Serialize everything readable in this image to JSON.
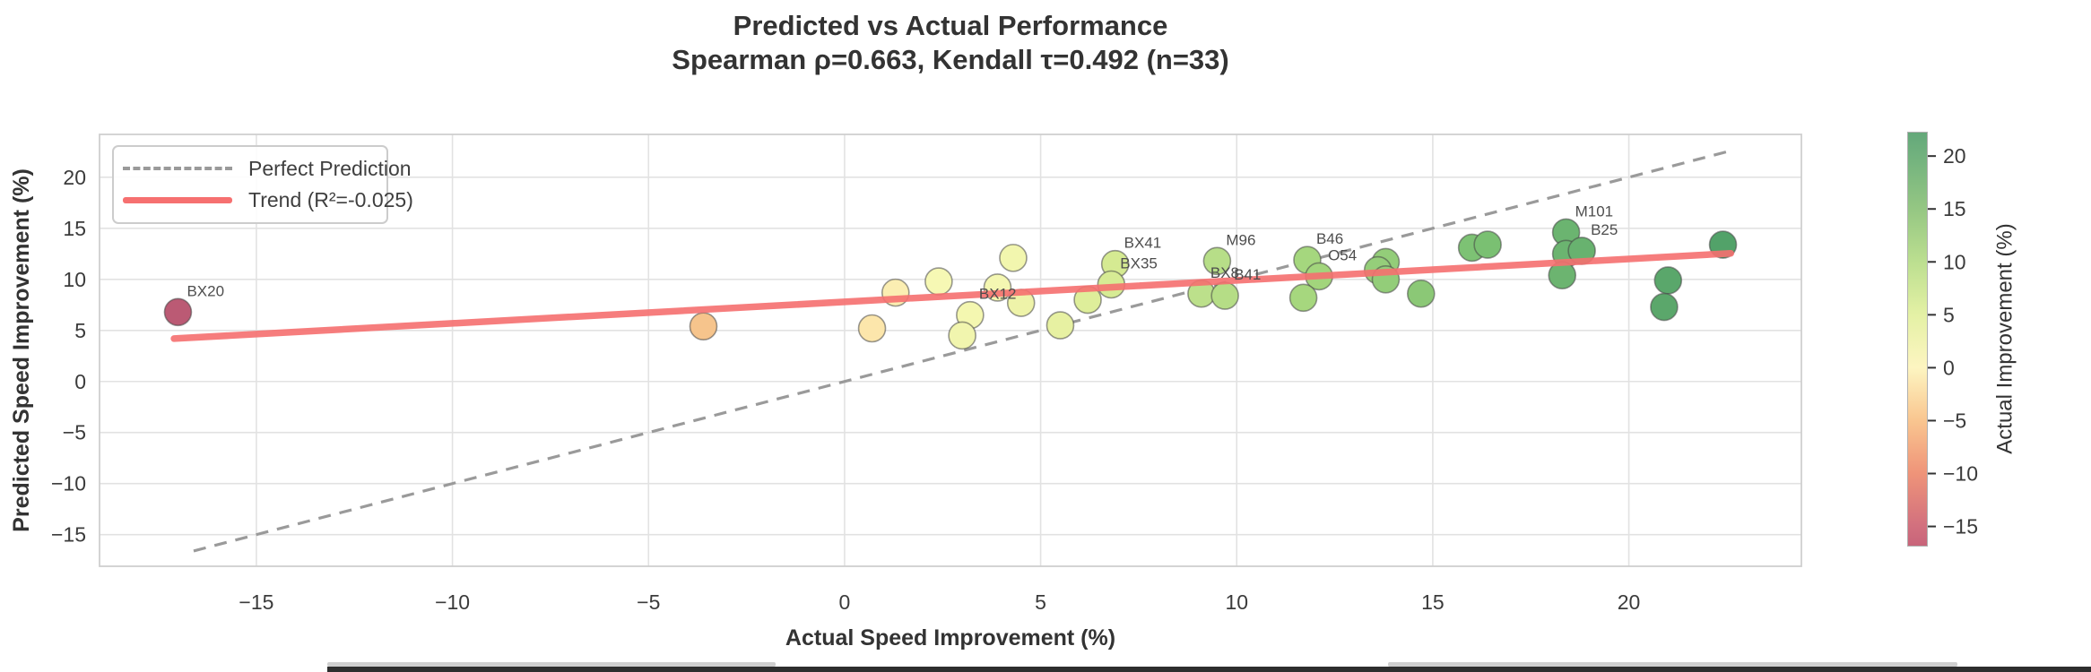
{
  "chart_data": {
    "type": "scatter",
    "title": "Predicted vs Actual Performance",
    "subtitle": "Spearman ρ=0.663, Kendall τ=0.492 (n=33)",
    "xlabel": "Actual Speed Improvement (%)",
    "ylabel": "Predicted Speed Improvement (%)",
    "xlim": [
      -19.0,
      24.4
    ],
    "ylim": [
      -18.1,
      24.2
    ],
    "xticks": [
      -15,
      -10,
      -5,
      0,
      5,
      10,
      15,
      20
    ],
    "yticks": [
      20,
      15,
      10,
      5,
      0,
      -5,
      -10,
      -15
    ],
    "grid": true,
    "grid_color": "#e2e2e2",
    "perfect_line": {
      "label": "Perfect Prediction",
      "color": "#9a9a9a",
      "points": [
        [
          -16.6,
          -16.6
        ],
        [
          22.6,
          22.6
        ]
      ]
    },
    "trend_line": {
      "label": "Trend (R²=-0.025)",
      "color": "#f67070",
      "points": [
        [
          -17.1,
          4.2
        ],
        [
          22.6,
          12.55
        ]
      ]
    },
    "colorbar": {
      "label": "Actual Improvement (%)",
      "vmin": -16.9,
      "vmax": 22.3,
      "ticks": [
        20,
        15,
        10,
        5,
        0,
        -5,
        -10,
        -15
      ],
      "stops": [
        {
          "v": 22.3,
          "c": "#64a87a"
        },
        {
          "v": 20,
          "c": "#72b27e"
        },
        {
          "v": 15,
          "c": "#95c783"
        },
        {
          "v": 10,
          "c": "#bcdf90"
        },
        {
          "v": 5,
          "c": "#e4f1a5"
        },
        {
          "v": 0,
          "c": "#fdf5c1"
        },
        {
          "v": -5,
          "c": "#f9c690"
        },
        {
          "v": -10,
          "c": "#ef9479"
        },
        {
          "v": -15,
          "c": "#d2707e"
        },
        {
          "v": -16.9,
          "c": "#c8647a"
        }
      ]
    },
    "points": [
      {
        "x": -17.0,
        "y": 6.8,
        "label": "BX20",
        "color": "#bb5a74"
      },
      {
        "x": -3.6,
        "y": 5.4,
        "label": "",
        "color": "#f6c48c"
      },
      {
        "x": 0.7,
        "y": 5.2,
        "label": "",
        "color": "#fce6ab"
      },
      {
        "x": 1.3,
        "y": 8.7,
        "label": "",
        "color": "#fbeeb2"
      },
      {
        "x": 2.4,
        "y": 9.8,
        "label": "",
        "color": "#f6f8b4"
      },
      {
        "x": 3.9,
        "y": 9.2,
        "label": "",
        "color": "#f4f7b2"
      },
      {
        "x": 4.3,
        "y": 12.1,
        "label": "",
        "color": "#f2f6ae"
      },
      {
        "x": 3.2,
        "y": 6.5,
        "label": "BX12",
        "color": "#f4f7b0"
      },
      {
        "x": 3.0,
        "y": 4.5,
        "label": "",
        "color": "#f1f5ae"
      },
      {
        "x": 4.5,
        "y": 7.7,
        "label": "",
        "color": "#eef3a9"
      },
      {
        "x": 5.5,
        "y": 5.5,
        "label": "",
        "color": "#e7f1a2"
      },
      {
        "x": 6.2,
        "y": 8.0,
        "label": "",
        "color": "#deee9a"
      },
      {
        "x": 6.9,
        "y": 11.5,
        "label": "BX41",
        "color": "#d5ea92"
      },
      {
        "x": 6.8,
        "y": 9.5,
        "label": "BX35",
        "color": "#d6eb94"
      },
      {
        "x": 9.5,
        "y": 11.8,
        "label": "M96",
        "color": "#b7de88"
      },
      {
        "x": 9.1,
        "y": 8.6,
        "label": "BX8",
        "color": "#bce08b"
      },
      {
        "x": 9.7,
        "y": 8.4,
        "label": "B41",
        "color": "#b5dd86"
      },
      {
        "x": 11.8,
        "y": 11.9,
        "label": "B46",
        "color": "#a5d77e"
      },
      {
        "x": 12.1,
        "y": 10.3,
        "label": "O54",
        "color": "#a2d57c"
      },
      {
        "x": 11.7,
        "y": 8.2,
        "label": "",
        "color": "#a6d77e"
      },
      {
        "x": 13.8,
        "y": 11.7,
        "label": "",
        "color": "#93cd79"
      },
      {
        "x": 13.6,
        "y": 10.9,
        "label": "",
        "color": "#95ce7a"
      },
      {
        "x": 13.8,
        "y": 10.0,
        "label": "",
        "color": "#93cd79"
      },
      {
        "x": 14.7,
        "y": 8.6,
        "label": "",
        "color": "#8bc876"
      },
      {
        "x": 16.0,
        "y": 13.1,
        "label": "",
        "color": "#7dc274"
      },
      {
        "x": 16.4,
        "y": 13.4,
        "label": "",
        "color": "#7ac072"
      },
      {
        "x": 18.4,
        "y": 14.6,
        "label": "M101",
        "color": "#6bb470"
      },
      {
        "x": 18.4,
        "y": 12.5,
        "label": "",
        "color": "#6bb470"
      },
      {
        "x": 18.8,
        "y": 12.8,
        "label": "B25",
        "color": "#68b26f"
      },
      {
        "x": 18.3,
        "y": 10.4,
        "label": "",
        "color": "#6cb470"
      },
      {
        "x": 21.0,
        "y": 9.9,
        "label": "",
        "color": "#5aa76b"
      },
      {
        "x": 20.9,
        "y": 7.3,
        "label": "",
        "color": "#5ba76b"
      },
      {
        "x": 22.4,
        "y": 13.4,
        "label": "",
        "color": "#52a269"
      }
    ]
  }
}
